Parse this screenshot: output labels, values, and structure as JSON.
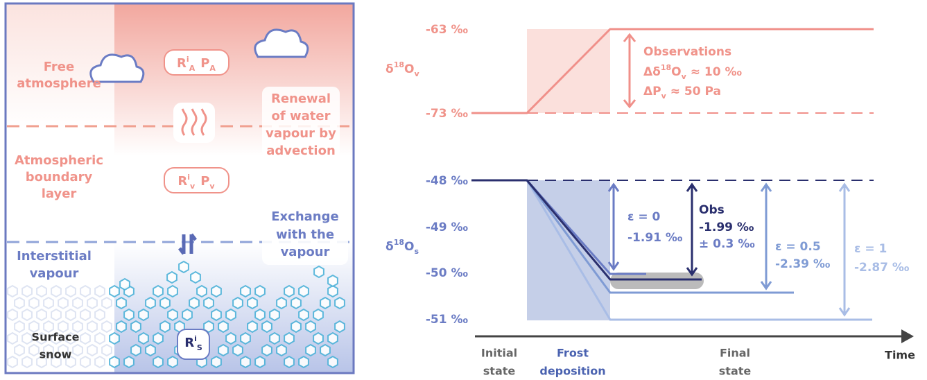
{
  "left_panel": {
    "free_atmosphere": [
      "Free",
      "atmosphere"
    ],
    "renewal": [
      "Renewal",
      "of water",
      "vapour by",
      "advection"
    ],
    "boundary_layer": [
      "Atmospheric",
      "boundary",
      "layer"
    ],
    "interstitial": [
      "Interstitial",
      "vapour"
    ],
    "exchange": [
      "Exchange",
      "with the",
      "vapour"
    ],
    "surface_snow": [
      "Surface",
      "snow"
    ],
    "ratio_atm": {
      "base": "R",
      "sup": "i",
      "sub": "A",
      "p": "P",
      "p_sub": "A"
    },
    "ratio_vap": {
      "base": "R",
      "sup": "i",
      "sub": "v",
      "p": "P",
      "p_sub": "v"
    },
    "ratio_snow": {
      "base": "R",
      "sup": "i",
      "sub": "S"
    }
  },
  "right_panel": {
    "vapour_axis": {
      "label": {
        "pre": "δ",
        "sup": "18",
        "mid": "O",
        "sub": "v"
      },
      "ticks": [
        "-63 ‰",
        "-73 ‰"
      ]
    },
    "snow_axis": {
      "label": {
        "pre": "δ",
        "sup": "18",
        "mid": "O",
        "sub": "s"
      },
      "ticks": [
        "-48 ‰",
        "-49 ‰",
        "-50 ‰",
        "-51 ‰"
      ]
    },
    "observations": {
      "title": "Observations",
      "delta": {
        "pre": "Δδ",
        "sup": "18",
        "mid": "O",
        "sub": "v",
        "post": " ≈ 10 ‰"
      },
      "pressure": {
        "pre": "ΔP",
        "sub": "v",
        "post": " ≈ 50 Pa"
      }
    },
    "scenarios": [
      {
        "name": "ε = 0",
        "value": "-1.91 ‰"
      },
      {
        "name": "Obs",
        "value": "-1.99 ‰",
        "uncertainty": "± 0.3 ‰"
      },
      {
        "name": "ε = 0.5",
        "value": "-2.39 ‰"
      },
      {
        "name": "ε = 1",
        "value": "-2.87 ‰"
      }
    ],
    "x_axis": {
      "stages": [
        [
          "Initial",
          "state"
        ],
        [
          "Frost",
          "deposition"
        ],
        [
          "Final",
          "state"
        ]
      ],
      "label": "Time"
    }
  }
}
